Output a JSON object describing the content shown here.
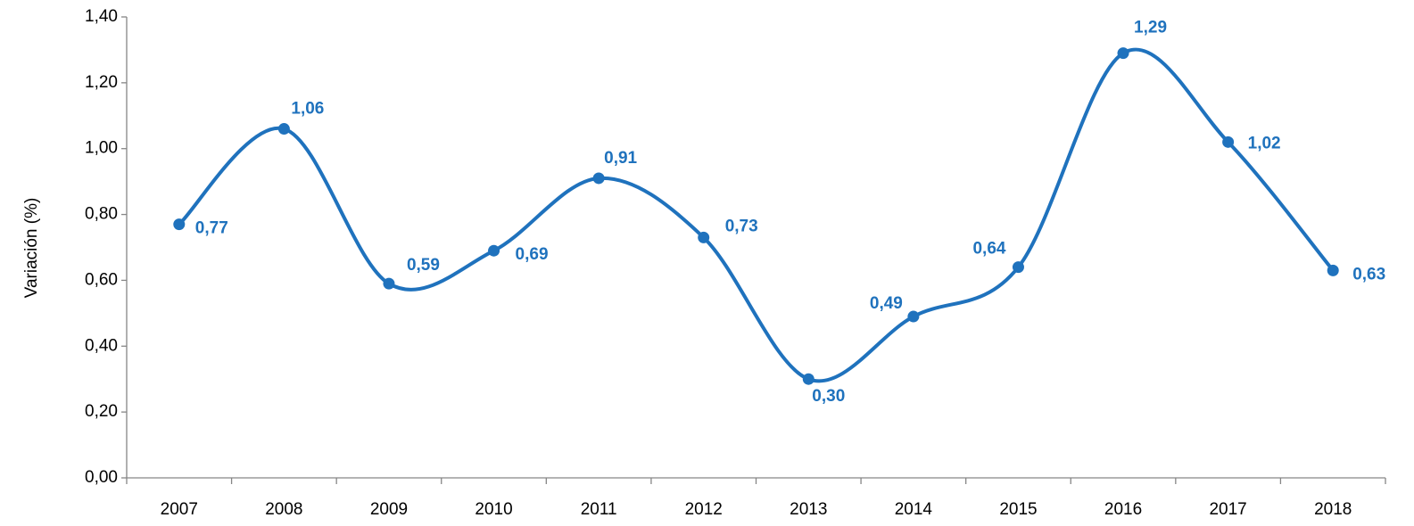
{
  "chart_data": {
    "type": "line",
    "y_label": "Variación (%)",
    "categories": [
      "2007",
      "2008",
      "2009",
      "2010",
      "2011",
      "2012",
      "2013",
      "2014",
      "2015",
      "2016",
      "2017",
      "2018"
    ],
    "series": [
      {
        "name": "Variación",
        "color": "#1f72bd",
        "values": [
          0.77,
          1.06,
          0.59,
          0.69,
          0.91,
          0.73,
          0.3,
          0.49,
          0.64,
          1.29,
          1.02,
          0.63
        ],
        "value_labels": [
          "0,77",
          "1,06",
          "0,59",
          "0,69",
          "0,91",
          "0,73",
          "0,30",
          "0,49",
          "0,64",
          "1,29",
          "1,02",
          "0,63"
        ]
      }
    ],
    "ylim": [
      0,
      1.4
    ],
    "yticks": [
      {
        "value": 0,
        "label": "0,00"
      },
      {
        "value": 0.2,
        "label": "0,20"
      },
      {
        "value": 0.4,
        "label": "0,40"
      },
      {
        "value": 0.6,
        "label": "0,60"
      },
      {
        "value": 0.8,
        "label": "0,80"
      },
      {
        "value": 1.0,
        "label": "1,00"
      },
      {
        "value": 1.2,
        "label": "1,20"
      },
      {
        "value": 1.4,
        "label": "1,40"
      }
    ],
    "smooth": true
  }
}
